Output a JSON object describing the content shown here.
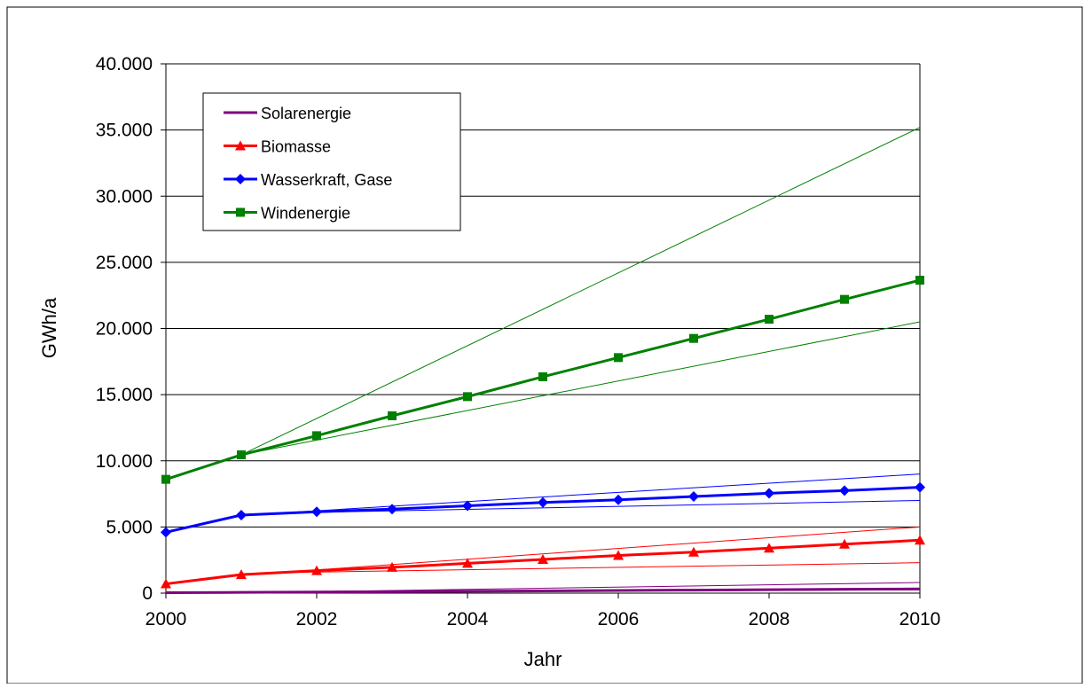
{
  "chart_data": {
    "type": "line",
    "title": "",
    "xlabel": "Jahr",
    "ylabel": "GWh/a",
    "xlim": [
      2000,
      2010
    ],
    "ylim": [
      0,
      40000
    ],
    "x_ticks": [
      2000,
      2002,
      2004,
      2006,
      2008,
      2010
    ],
    "x_tick_labels": [
      "2000",
      "2002",
      "2004",
      "2006",
      "2008",
      "2010"
    ],
    "y_ticks": [
      0,
      5000,
      10000,
      15000,
      20000,
      25000,
      30000,
      35000,
      40000
    ],
    "y_tick_labels": [
      "0",
      "5.000",
      "10.000",
      "15.000",
      "20.000",
      "25.000",
      "30.000",
      "35.000",
      "40.000"
    ],
    "grid": "horizontal",
    "legend_position": "top-left",
    "x": [
      2000,
      2001,
      2002,
      2003,
      2004,
      2005,
      2006,
      2007,
      2008,
      2009,
      2010
    ],
    "series": [
      {
        "name": "Windenergie",
        "color": "#008000",
        "marker": "square",
        "values": [
          8600,
          10450,
          11900,
          13400,
          14850,
          16350,
          17800,
          19250,
          20700,
          22200,
          23650
        ]
      },
      {
        "name": "Wasserkraft, Gase",
        "color": "#0000ff",
        "marker": "diamond",
        "values": [
          4600,
          5900,
          6150,
          6350,
          6600,
          6850,
          7050,
          7300,
          7550,
          7750,
          8000
        ]
      },
      {
        "name": "Biomasse",
        "color": "#ff0000",
        "marker": "triangle",
        "values": [
          700,
          1400,
          1700,
          1950,
          2250,
          2550,
          2850,
          3100,
          3400,
          3700,
          4000
        ]
      },
      {
        "name": "Solarenergie",
        "color": "#800080",
        "marker": "none",
        "values": [
          30,
          60,
          80,
          110,
          140,
          170,
          200,
          230,
          260,
          290,
          320
        ]
      }
    ],
    "legend_order": [
      "Solarenergie",
      "Biomasse",
      "Wasserkraft, Gase",
      "Windenergie"
    ],
    "range_lines": [
      {
        "color": "#008000",
        "x": [
          2001,
          2010
        ],
        "y": [
          10450,
          35200
        ]
      },
      {
        "color": "#008000",
        "x": [
          2001,
          2010
        ],
        "y": [
          10450,
          20500
        ]
      },
      {
        "color": "#0000ff",
        "x": [
          2001.5,
          2010
        ],
        "y": [
          6050,
          9000
        ]
      },
      {
        "color": "#0000ff",
        "x": [
          2001.5,
          2010
        ],
        "y": [
          6050,
          7000
        ]
      },
      {
        "color": "#ff0000",
        "x": [
          2001.5,
          2010
        ],
        "y": [
          1550,
          5000
        ]
      },
      {
        "color": "#ff0000",
        "x": [
          2001.5,
          2010
        ],
        "y": [
          1550,
          2300
        ]
      },
      {
        "color": "#800080",
        "x": [
          2001.5,
          2010
        ],
        "y": [
          70,
          800
        ]
      },
      {
        "color": "#800080",
        "x": [
          2001.5,
          2010
        ],
        "y": [
          70,
          250
        ]
      }
    ]
  }
}
